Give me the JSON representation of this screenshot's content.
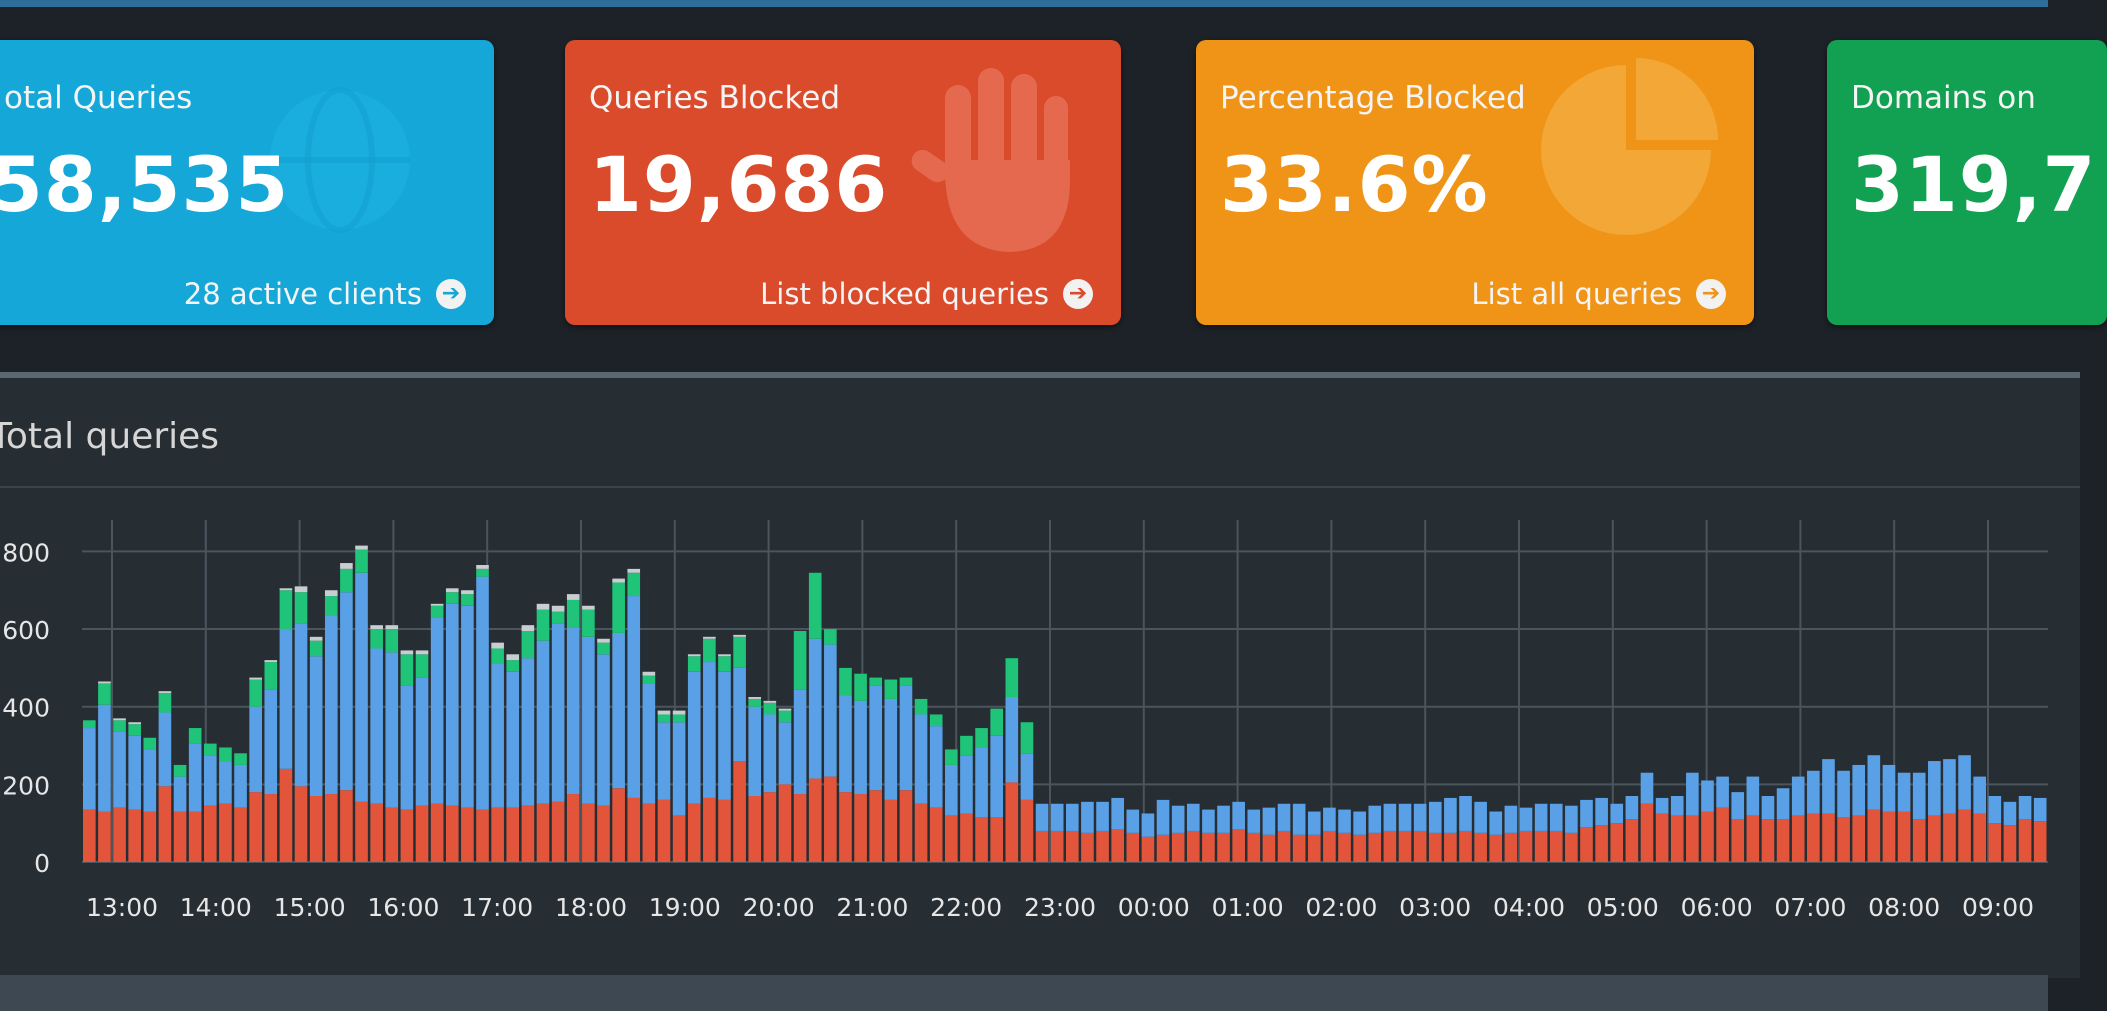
{
  "colors": {
    "total_card": "#14a7d7",
    "blocked_card": "#da4b2c",
    "percent_card": "#ef9417",
    "domains_card": "#12a152",
    "series_blocked": "#e2553a",
    "series_forwarded": "#5aa0e6",
    "series_cached": "#1fc478",
    "series_other": "#c9ccd1"
  },
  "cards": {
    "total": {
      "title": "otal Queries",
      "value": "58,535",
      "link": "28 active clients",
      "icon": "globe-icon"
    },
    "blocked": {
      "title": "Queries Blocked",
      "value": "19,686",
      "link": "List blocked queries",
      "icon": "hand-icon"
    },
    "percent": {
      "title": "Percentage Blocked",
      "value": "33.6%",
      "link": "List all queries",
      "icon": "pie-chart-icon"
    },
    "domains": {
      "title": "Domains on",
      "value": "319,7"
    }
  },
  "panel": {
    "title": "Total queries"
  },
  "chart_data": {
    "type": "bar",
    "stacked": true,
    "xlabel": "",
    "ylabel": "",
    "ylim": [
      0,
      850
    ],
    "grid": true,
    "yticks": [
      "0",
      "200",
      "400",
      "600",
      "800"
    ],
    "xticks": [
      "13:00",
      "14:00",
      "15:00",
      "16:00",
      "17:00",
      "18:00",
      "19:00",
      "20:00",
      "21:00",
      "22:00",
      "23:00",
      "00:00",
      "01:00",
      "02:00",
      "03:00",
      "04:00",
      "05:00",
      "06:00",
      "07:00",
      "08:00",
      "09:00"
    ],
    "series": [
      {
        "values": [
          135,
          130,
          140,
          135,
          130,
          195,
          130,
          130,
          145,
          150,
          140,
          180,
          175,
          240,
          195,
          170,
          175,
          185,
          155,
          150,
          140,
          135,
          145,
          150,
          145,
          140,
          135,
          140,
          140,
          145,
          150,
          155,
          175,
          150,
          145,
          190,
          165,
          150,
          160,
          120,
          150,
          165,
          160,
          260,
          170,
          180,
          200,
          175,
          215,
          220,
          180,
          175,
          185,
          160,
          185,
          150,
          140,
          120,
          125,
          115,
          115,
          205,
          160,
          80,
          80,
          80,
          75,
          80,
          85,
          75,
          65,
          70,
          75,
          80,
          75,
          75,
          85,
          75,
          70,
          80,
          70,
          70,
          80,
          75,
          70,
          75,
          80,
          80,
          80,
          75,
          75,
          80,
          75,
          70,
          75,
          80,
          80,
          80,
          75,
          90,
          95,
          100,
          110,
          150,
          125,
          120,
          120,
          130,
          140,
          110,
          120,
          110,
          110,
          120,
          125,
          125,
          115,
          120,
          135,
          130,
          130,
          110,
          120,
          125,
          135,
          125,
          100,
          95,
          110,
          105
        ]
      },
      {
        "values": [
          210,
          275,
          195,
          190,
          160,
          190,
          90,
          175,
          130,
          110,
          110,
          220,
          270,
          360,
          420,
          360,
          460,
          510,
          590,
          400,
          400,
          320,
          330,
          480,
          520,
          520,
          600,
          370,
          350,
          380,
          420,
          460,
          430,
          430,
          390,
          400,
          520,
          310,
          200,
          240,
          340,
          350,
          330,
          240,
          230,
          200,
          160,
          270,
          360,
          340,
          250,
          240,
          270,
          260,
          270,
          230,
          210,
          130,
          150,
          180,
          210,
          220,
          120,
          70,
          70,
          70,
          80,
          75,
          80,
          60,
          60,
          90,
          70,
          70,
          60,
          70,
          70,
          60,
          70,
          70,
          80,
          60,
          60,
          60,
          60,
          70,
          70,
          70,
          70,
          80,
          90,
          90,
          80,
          60,
          70,
          60,
          70,
          70,
          70,
          70,
          70,
          50,
          60,
          80,
          40,
          50,
          110,
          80,
          80,
          70,
          100,
          60,
          80,
          100,
          110,
          140,
          120,
          130,
          140,
          120,
          100,
          120,
          140,
          140,
          140,
          95,
          70,
          60,
          60,
          60
        ]
      },
      {
        "values": [
          20,
          55,
          30,
          30,
          30,
          50,
          30,
          40,
          30,
          35,
          30,
          70,
          70,
          100,
          80,
          40,
          50,
          60,
          60,
          50,
          60,
          80,
          60,
          30,
          30,
          30,
          20,
          40,
          30,
          70,
          80,
          30,
          70,
          70,
          30,
          130,
          60,
          20,
          20,
          20,
          40,
          60,
          40,
          80,
          20,
          30,
          30,
          150,
          170,
          40,
          70,
          70,
          20,
          50,
          20,
          40,
          30,
          40,
          50,
          50,
          70,
          100,
          80,
          0,
          0,
          0,
          0,
          0,
          0,
          0,
          0,
          0,
          0,
          0,
          0,
          0,
          0,
          0,
          0,
          0,
          0,
          0,
          0,
          0,
          0,
          0,
          0,
          0,
          0,
          0,
          0,
          0,
          0,
          0,
          0,
          0,
          0,
          0,
          0,
          0,
          0,
          0,
          0,
          0,
          0,
          0,
          0,
          0,
          0,
          0,
          0,
          0,
          0,
          0,
          0,
          0,
          0,
          0,
          0,
          0,
          0,
          0,
          0,
          0,
          0,
          0,
          0,
          0,
          0,
          0
        ]
      },
      {
        "values": [
          0,
          5,
          5,
          5,
          0,
          5,
          0,
          0,
          0,
          0,
          0,
          5,
          5,
          5,
          15,
          10,
          15,
          15,
          10,
          10,
          10,
          10,
          10,
          5,
          10,
          10,
          10,
          15,
          15,
          15,
          15,
          15,
          15,
          10,
          10,
          10,
          10,
          10,
          10,
          10,
          5,
          5,
          5,
          5,
          5,
          5,
          5,
          0,
          0,
          0,
          0,
          0,
          0,
          0,
          0,
          0,
          0,
          0,
          0,
          0,
          0,
          0,
          0,
          0,
          0,
          0,
          0,
          0,
          0,
          0,
          0,
          0,
          0,
          0,
          0,
          0,
          0,
          0,
          0,
          0,
          0,
          0,
          0,
          0,
          0,
          0,
          0,
          0,
          0,
          0,
          0,
          0,
          0,
          0,
          0,
          0,
          0,
          0,
          0,
          0,
          0,
          0,
          0,
          0,
          0,
          0,
          0,
          0,
          0,
          0,
          0,
          0,
          0,
          0,
          0,
          0,
          0,
          0,
          0,
          0,
          0,
          0,
          0,
          0,
          0,
          0,
          0,
          0,
          0,
          0
        ]
      }
    ]
  }
}
